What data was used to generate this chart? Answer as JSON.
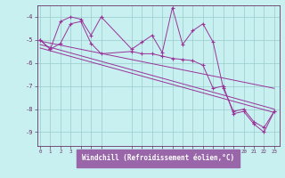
{
  "xlabel": "Windchill (Refroidissement éolien,°C)",
  "bg_color": "#c8f0f0",
  "label_bg_color": "#9966aa",
  "line_color": "#993399",
  "grid_color": "#99cccc",
  "axis_color": "#663366",
  "xticks": [
    0,
    1,
    2,
    3,
    4,
    5,
    6,
    9,
    10,
    11,
    12,
    13,
    14,
    15,
    16,
    17,
    18,
    19,
    20,
    21,
    22,
    23
  ],
  "yticks": [
    -9,
    -8,
    -7,
    -6,
    -5,
    -4
  ],
  "ylim": [
    -9.6,
    -3.5
  ],
  "xlim": [
    -0.3,
    23.5
  ],
  "series": [
    {
      "x": [
        0,
        1,
        2,
        3,
        4,
        5,
        6,
        9,
        10,
        11,
        12,
        13,
        14,
        15,
        16,
        17,
        18,
        19,
        20,
        21,
        22,
        23
      ],
      "y": [
        -5.0,
        -5.4,
        -4.2,
        -4.0,
        -4.1,
        -4.8,
        -4.0,
        -5.4,
        -5.1,
        -4.8,
        -5.55,
        -3.6,
        -5.2,
        -4.6,
        -4.3,
        -5.1,
        -7.1,
        -8.1,
        -8.0,
        -8.55,
        -8.8,
        -8.1
      ],
      "marker": true
    },
    {
      "x": [
        0,
        1,
        2,
        3,
        4,
        5,
        6,
        9,
        10,
        11,
        12,
        13,
        14,
        15,
        16,
        17,
        18,
        19,
        20,
        21,
        22,
        23
      ],
      "y": [
        -5.0,
        -5.4,
        -5.15,
        -4.3,
        -4.2,
        -5.15,
        -5.6,
        -5.5,
        -5.6,
        -5.6,
        -5.7,
        -5.8,
        -5.85,
        -5.9,
        -6.1,
        -7.1,
        -7.0,
        -8.2,
        -8.1,
        -8.65,
        -9.0,
        -8.1
      ],
      "marker": true
    },
    {
      "x": [
        0,
        23
      ],
      "y": [
        -5.05,
        -7.1
      ],
      "marker": false
    },
    {
      "x": [
        0,
        23
      ],
      "y": [
        -5.2,
        -8.0
      ],
      "marker": false
    },
    {
      "x": [
        0,
        23
      ],
      "y": [
        -5.35,
        -8.15
      ],
      "marker": false
    }
  ]
}
